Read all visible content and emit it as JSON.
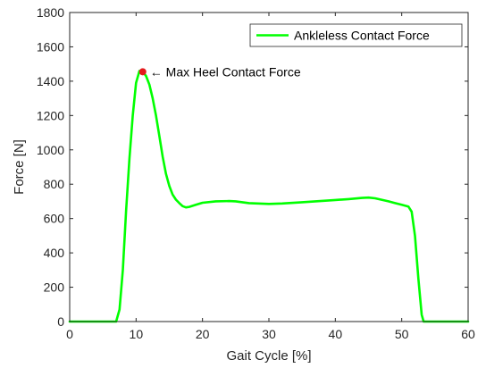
{
  "chart_data": {
    "type": "line",
    "title": "",
    "xlabel": "Gait Cycle [%]",
    "ylabel": "Force [N]",
    "xlim": [
      0,
      60
    ],
    "ylim": [
      0,
      1800
    ],
    "xticks": [
      0,
      10,
      20,
      30,
      40,
      50,
      60
    ],
    "yticks": [
      0,
      200,
      400,
      600,
      800,
      1000,
      1200,
      1400,
      1600,
      1800
    ],
    "grid": false,
    "legend_position": "top-right",
    "series": [
      {
        "name": "Ankleless Contact Force",
        "color": "#00ff00",
        "x": [
          0,
          7,
          7.5,
          8,
          8.5,
          9,
          9.5,
          10,
          10.5,
          11,
          11.5,
          12,
          12.5,
          13,
          13.5,
          14,
          14.5,
          15,
          15.5,
          16,
          16.5,
          17,
          17.5,
          18,
          19,
          20,
          22,
          24,
          25,
          27,
          30,
          32,
          35,
          38,
          40,
          42,
          44,
          45,
          46,
          48,
          49,
          50,
          51,
          51.5,
          52,
          52.5,
          53,
          53.3,
          60
        ],
        "y": [
          0,
          0,
          70,
          300,
          650,
          950,
          1200,
          1390,
          1460,
          1455,
          1430,
          1380,
          1300,
          1200,
          1080,
          960,
          860,
          790,
          740,
          710,
          690,
          672,
          665,
          668,
          680,
          692,
          700,
          702,
          700,
          690,
          685,
          688,
          695,
          703,
          708,
          713,
          720,
          722,
          718,
          700,
          690,
          680,
          670,
          640,
          500,
          250,
          40,
          0,
          0
        ]
      }
    ],
    "annotations": [
      {
        "text": "← Max Heel Contact Force",
        "x": 11,
        "y": 1455,
        "marker_color": "#e41a1c"
      }
    ]
  }
}
